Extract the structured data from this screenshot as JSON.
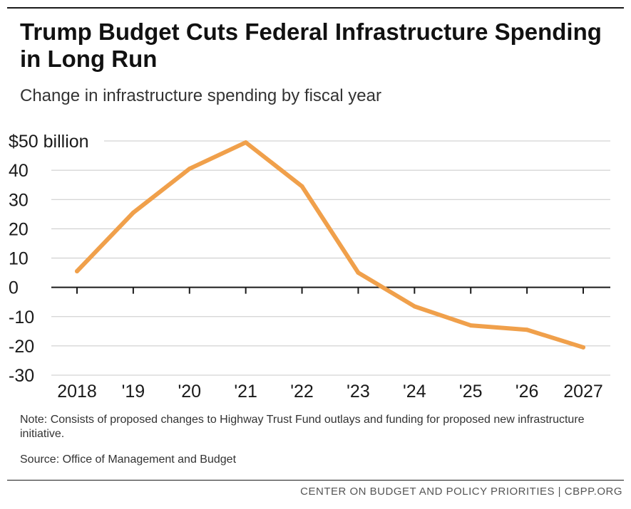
{
  "chart_data": {
    "type": "line",
    "title": "Trump Budget Cuts Federal Infrastructure Spending in Long Run",
    "subtitle": "Change in infrastructure spending by fiscal year",
    "categories": [
      "2018",
      "'19",
      "'20",
      "'21",
      "'22",
      "'23",
      "'24",
      "'25",
      "'26",
      "2027"
    ],
    "series": [
      {
        "name": "Change in infrastructure spending",
        "values": [
          5.5,
          25.5,
          40.5,
          49.5,
          34.5,
          5,
          -6.5,
          -13,
          -14.5,
          -20.5
        ]
      }
    ],
    "y_ticks": [
      50,
      40,
      30,
      20,
      10,
      0,
      -10,
      -20,
      -30
    ],
    "y_tick_labels": [
      "$50 billion",
      "40",
      "30",
      "20",
      "10",
      "0",
      "-10",
      "-20",
      "-30"
    ],
    "ylim": [
      -30,
      50
    ],
    "xlabel": "",
    "ylabel": "",
    "grid": true,
    "line_color": "#f0a04b"
  },
  "note": "Note: Consists of proposed changes to Highway Trust Fund outlays and funding for proposed new infrastructure initiative.",
  "source": "Source: Office of Management and Budget",
  "footer": "CENTER ON BUDGET AND POLICY PRIORITIES | CBPP.ORG"
}
